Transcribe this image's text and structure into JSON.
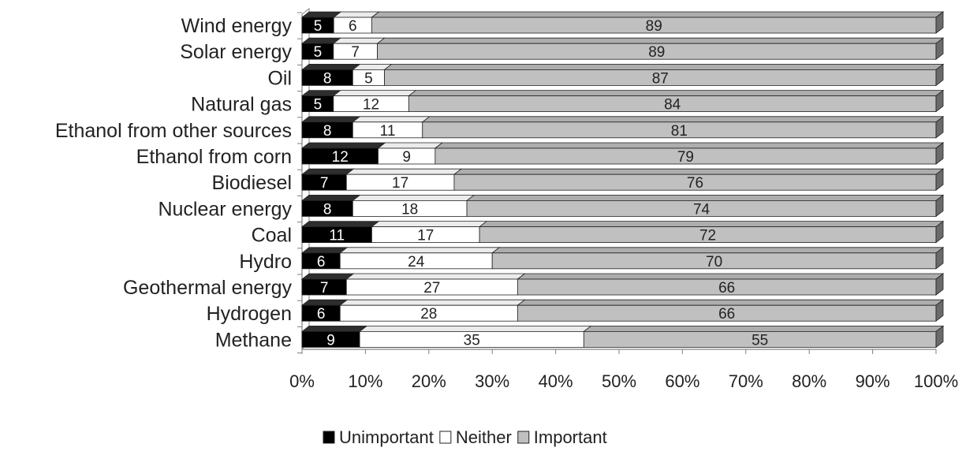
{
  "chart_data": {
    "type": "bar",
    "orientation": "horizontal",
    "stacked": "percent",
    "style": "3d",
    "categories": [
      "Wind energy",
      "Solar energy",
      "Oil",
      "Natural gas",
      "Ethanol from other sources",
      "Ethanol from corn",
      "Biodiesel",
      "Nuclear energy",
      "Coal",
      "Hydro",
      "Geothermal energy",
      "Hydrogen",
      "Methane"
    ],
    "series": [
      {
        "name": "Unimportant",
        "color": "#000000",
        "label_color": "#ffffff",
        "values": [
          5,
          5,
          8,
          5,
          8,
          12,
          7,
          8,
          11,
          6,
          7,
          6,
          9
        ]
      },
      {
        "name": "Neither",
        "color": "#ffffff",
        "label_color": "#222222",
        "values": [
          6,
          7,
          5,
          12,
          11,
          9,
          17,
          18,
          17,
          24,
          27,
          28,
          35
        ]
      },
      {
        "name": "Important",
        "color": "#c0c0c0",
        "label_color": "#222222",
        "values": [
          89,
          89,
          87,
          84,
          81,
          79,
          76,
          74,
          72,
          70,
          66,
          66,
          55
        ]
      }
    ],
    "x_ticks": [
      "0%",
      "10%",
      "20%",
      "30%",
      "40%",
      "50%",
      "60%",
      "70%",
      "80%",
      "90%",
      "100%"
    ],
    "xlim": [
      0,
      100
    ],
    "title": "",
    "xlabel": "",
    "ylabel": "",
    "grid": false,
    "legend_position": "bottom"
  }
}
